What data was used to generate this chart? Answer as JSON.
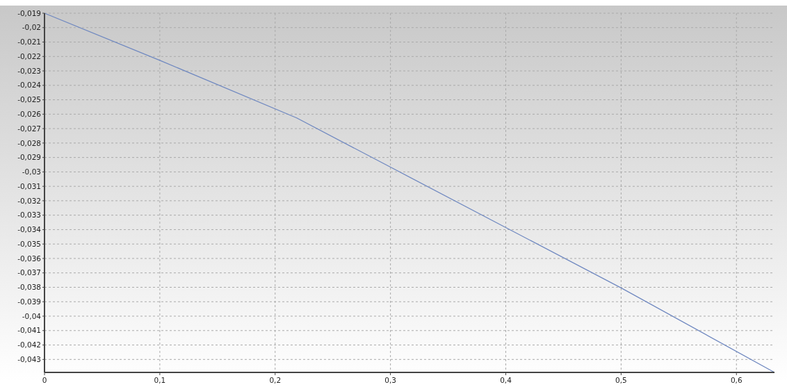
{
  "chart_data": {
    "type": "line",
    "x": [
      0,
      0.1,
      0.2187,
      0.3,
      0.4,
      0.5,
      0.633
    ],
    "series": [
      {
        "color": "#6f88c0",
        "values": [
          -0.019,
          -0.02227,
          -0.02626,
          -0.02967,
          -0.03386,
          -0.03804,
          -0.0439
        ]
      }
    ],
    "xlim": [
      0,
      0.633
    ],
    "ylim": [
      -0.0439,
      -0.019
    ],
    "xticks": [
      0,
      {
        "value": 0.1,
        "label": "0,1"
      },
      {
        "value": 0.2,
        "label": "0,2"
      },
      {
        "value": 0.3,
        "label": "0,3"
      },
      {
        "value": 0.4,
        "label": "0,4"
      },
      {
        "value": 0.5,
        "label": "0,5"
      },
      {
        "value": 0.6,
        "label": "0,6"
      }
    ],
    "yticks": [
      {
        "value": -0.019,
        "label": "-0,019"
      },
      {
        "value": -0.02,
        "label": "-0,02"
      },
      {
        "value": -0.021,
        "label": "-0,021"
      },
      {
        "value": -0.022,
        "label": "-0,022"
      },
      {
        "value": -0.023,
        "label": "-0,023"
      },
      {
        "value": -0.024,
        "label": "-0,024"
      },
      {
        "value": -0.025,
        "label": "-0,025"
      },
      {
        "value": -0.026,
        "label": "-0,026"
      },
      {
        "value": -0.027,
        "label": "-0,027"
      },
      {
        "value": -0.028,
        "label": "-0,028"
      },
      {
        "value": -0.029,
        "label": "-0,029"
      },
      {
        "value": -0.03,
        "label": "-0,03"
      },
      {
        "value": -0.031,
        "label": "-0,031"
      },
      {
        "value": -0.032,
        "label": "-0,032"
      },
      {
        "value": -0.033,
        "label": "-0,033"
      },
      {
        "value": -0.034,
        "label": "-0,034"
      },
      {
        "value": -0.035,
        "label": "-0,035"
      },
      {
        "value": -0.036,
        "label": "-0,036"
      },
      {
        "value": -0.037,
        "label": "-0,037"
      },
      {
        "value": -0.038,
        "label": "-0,038"
      },
      {
        "value": -0.039,
        "label": "-0,039"
      },
      {
        "value": -0.04,
        "label": "-0,04"
      },
      {
        "value": -0.041,
        "label": "-0,041"
      },
      {
        "value": -0.042,
        "label": "-0,042"
      },
      {
        "value": -0.043,
        "label": "-0,043"
      }
    ],
    "grid": true,
    "marker": "none",
    "line_style": "solid"
  }
}
